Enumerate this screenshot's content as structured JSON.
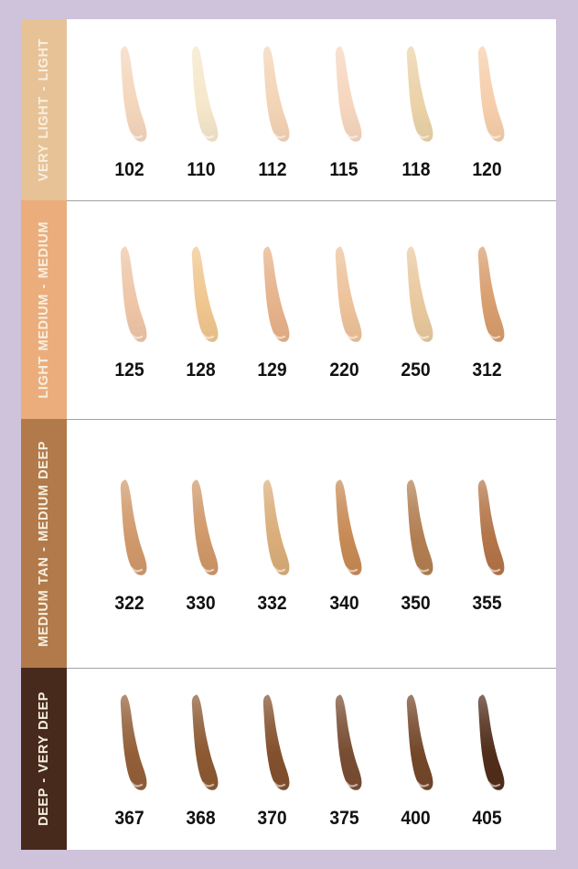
{
  "page": {
    "background_color": "#CFC2DB",
    "panel_color": "#FFFFFF",
    "divider_color": "#A3A0A6",
    "number_color": "#111111",
    "band_text_color": "#F8EFDF"
  },
  "chart": {
    "rows": [
      {
        "label": "VERY LIGHT - LIGHT",
        "band_color": "#E8C297",
        "shades": [
          {
            "number": "102",
            "color": "#F4D6BC"
          },
          {
            "number": "110",
            "color": "#F5E7CB"
          },
          {
            "number": "112",
            "color": "#F4D4B6"
          },
          {
            "number": "115",
            "color": "#F6D6BE"
          },
          {
            "number": "118",
            "color": "#EBD2A7"
          },
          {
            "number": "120",
            "color": "#F6CEAB"
          }
        ]
      },
      {
        "label": "LIGHT MEDIUM - MEDIUM",
        "band_color": "#EBAD7C",
        "shades": [
          {
            "number": "125",
            "color": "#EEC5A6"
          },
          {
            "number": "128",
            "color": "#F0C68E"
          },
          {
            "number": "129",
            "color": "#E6B28A"
          },
          {
            "number": "220",
            "color": "#EDC29A"
          },
          {
            "number": "250",
            "color": "#E9C89E"
          },
          {
            "number": "312",
            "color": "#D89D6D"
          }
        ]
      },
      {
        "label": "MEDIUM TAN - MEDIUM DEEP",
        "band_color": "#B27A4A",
        "shades": [
          {
            "number": "322",
            "color": "#D0996B"
          },
          {
            "number": "330",
            "color": "#CF9868"
          },
          {
            "number": "332",
            "color": "#DAAD79"
          },
          {
            "number": "340",
            "color": "#C78A54"
          },
          {
            "number": "350",
            "color": "#B27E51"
          },
          {
            "number": "355",
            "color": "#B37448"
          }
        ]
      },
      {
        "label": "DEEP - VERY DEEP",
        "band_color": "#482A1D",
        "shades": [
          {
            "number": "367",
            "color": "#935F39"
          },
          {
            "number": "368",
            "color": "#8C5932"
          },
          {
            "number": "370",
            "color": "#83502D"
          },
          {
            "number": "375",
            "color": "#784D32"
          },
          {
            "number": "400",
            "color": "#744729"
          },
          {
            "number": "405",
            "color": "#512D1B"
          }
        ]
      }
    ]
  },
  "chart_data": {
    "type": "table",
    "categories": [
      "VERY LIGHT - LIGHT",
      "LIGHT MEDIUM - MEDIUM",
      "MEDIUM TAN - MEDIUM DEEP",
      "DEEP - VERY DEEP"
    ],
    "series": [
      {
        "name": "VERY LIGHT - LIGHT",
        "values": [
          102,
          110,
          112,
          115,
          118,
          120
        ],
        "swatch_colors": [
          "#F4D6BC",
          "#F5E7CB",
          "#F4D4B6",
          "#F6D6BE",
          "#EBD2A7",
          "#F6CEAB"
        ]
      },
      {
        "name": "LIGHT MEDIUM - MEDIUM",
        "values": [
          125,
          128,
          129,
          220,
          250,
          312
        ],
        "swatch_colors": [
          "#EEC5A6",
          "#F0C68E",
          "#E6B28A",
          "#EDC29A",
          "#E9C89E",
          "#D89D6D"
        ]
      },
      {
        "name": "MEDIUM TAN - MEDIUM DEEP",
        "values": [
          322,
          330,
          332,
          340,
          350,
          355
        ],
        "swatch_colors": [
          "#D0996B",
          "#CF9868",
          "#DAAD79",
          "#C78A54",
          "#B27E51",
          "#B37448"
        ]
      },
      {
        "name": "DEEP - VERY DEEP",
        "values": [
          367,
          368,
          370,
          375,
          400,
          405
        ],
        "swatch_colors": [
          "#935F39",
          "#8C5932",
          "#83502D",
          "#784D32",
          "#744729",
          "#512D1B"
        ]
      }
    ],
    "legend_position": "left-vertical-bands",
    "grid": false
  }
}
